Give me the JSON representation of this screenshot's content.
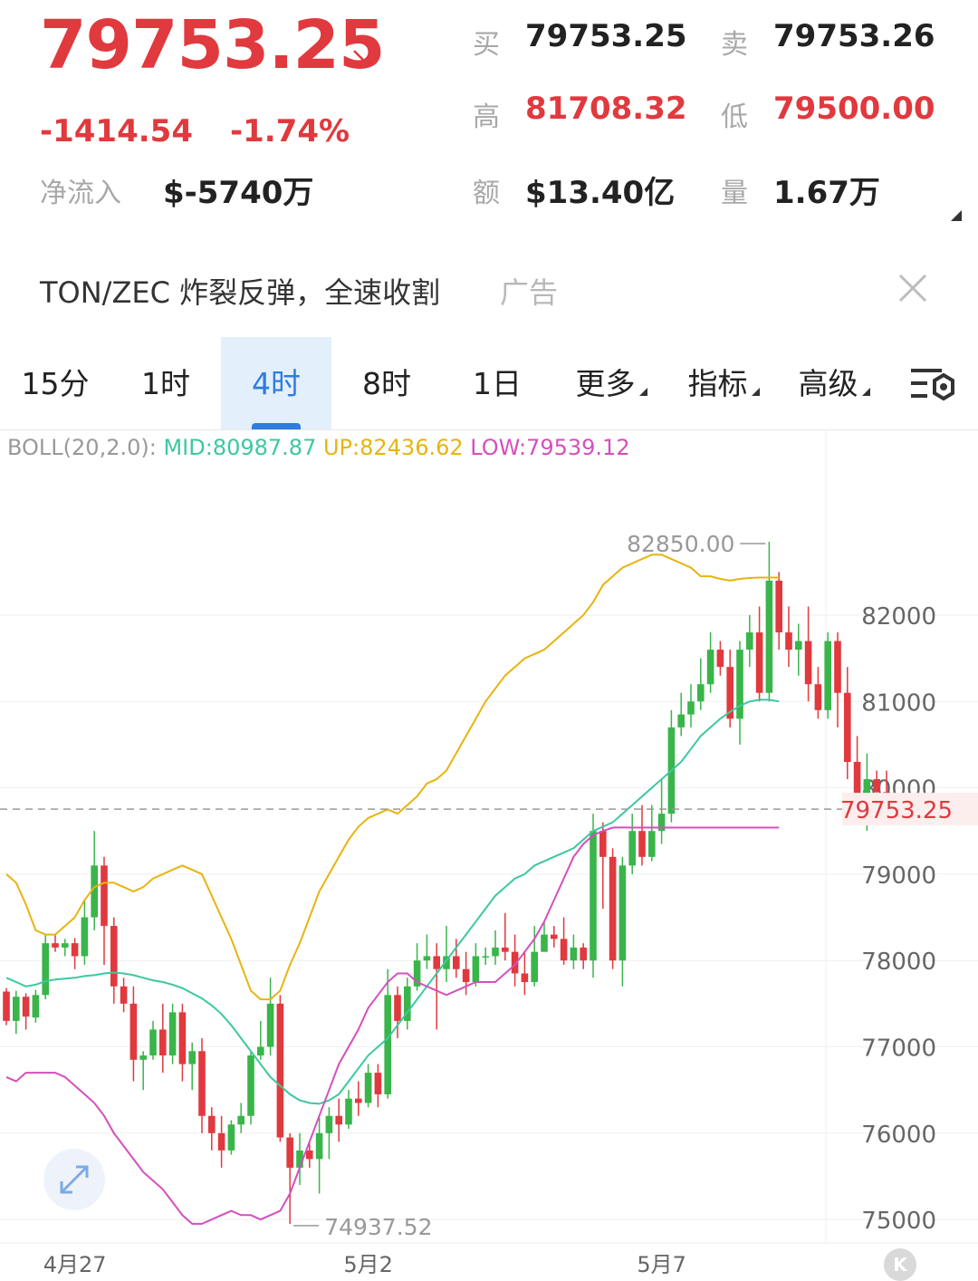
{
  "quote": {
    "last_price": "79753.25",
    "change": "-1414.54",
    "change_pct": "-1.74%",
    "net_inflow_label": "净流入",
    "net_inflow_value": "$-5740万",
    "bid_label": "买",
    "bid_value": "79753.25",
    "ask_label": "卖",
    "ask_value": "79753.26",
    "high_label": "高",
    "high_value": "81708.32",
    "low_label": "低",
    "low_value": "79500.00",
    "amount_label": "额",
    "amount_value": "$13.40亿",
    "volume_label": "量",
    "volume_value": "1.67万"
  },
  "ad": {
    "text": "TON/ZEC 炸裂反弹，全速收割",
    "tag": "广告"
  },
  "tabs": [
    {
      "label": "15分",
      "active": false
    },
    {
      "label": "1时",
      "active": false
    },
    {
      "label": "4时",
      "active": true
    },
    {
      "label": "8时",
      "active": false
    },
    {
      "label": "1日",
      "active": false
    },
    {
      "label": "更多",
      "active": false,
      "dropdown": true
    },
    {
      "label": "指标",
      "active": false,
      "dropdown": true
    },
    {
      "label": "高级",
      "active": false,
      "dropdown": true
    }
  ],
  "indicator": {
    "name": "BOLL(20,2.0):",
    "mid": "MID:80987.87",
    "up": "UP:82436.62",
    "low": "LOW:79539.12"
  },
  "colors": {
    "up": "#39b54a",
    "down": "#e0393e",
    "mid": "#3cc8a0",
    "upper": "#e8b40f",
    "lower": "#d54fbe",
    "accent": "#2f7ce0"
  },
  "k_button": "K",
  "chart_data": {
    "type": "candlestick",
    "y_ticks": [
      "82000",
      "81000",
      "80000",
      "79000",
      "78000",
      "77000",
      "76000",
      "75000"
    ],
    "x_labels": [
      {
        "label": "4月27",
        "index": 7
      },
      {
        "label": "5月2",
        "index": 37
      },
      {
        "label": "5月7",
        "index": 67
      }
    ],
    "ylim": [
      74800,
      83800
    ],
    "last_price_label": "79753.25",
    "max_label": "82850.00",
    "min_label": "74937.52",
    "candles": [
      [
        77640,
        77300,
        77680,
        77250
      ],
      [
        77300,
        77580,
        77650,
        77150
      ],
      [
        77580,
        77350,
        77620,
        77200
      ],
      [
        77340,
        77600,
        77660,
        77280
      ],
      [
        77600,
        78200,
        78300,
        77550
      ],
      [
        78200,
        78150,
        78300,
        78100
      ],
      [
        78150,
        78200,
        78250,
        78050
      ],
      [
        78200,
        78050,
        78260,
        77900
      ],
      [
        78050,
        78500,
        78700,
        77950
      ],
      [
        78500,
        79100,
        79500,
        78350
      ],
      [
        79100,
        78400,
        79200,
        77950
      ],
      [
        78400,
        77700,
        78500,
        77500
      ],
      [
        77700,
        77500,
        77800,
        77400
      ],
      [
        77500,
        76850,
        77700,
        76600
      ],
      [
        76850,
        76900,
        76950,
        76500
      ],
      [
        76900,
        77200,
        77300,
        76850
      ],
      [
        77200,
        76900,
        77500,
        76700
      ],
      [
        76900,
        77400,
        77500,
        76800
      ],
      [
        77400,
        76800,
        77500,
        76600
      ],
      [
        76800,
        76950,
        77050,
        76500
      ],
      [
        76950,
        76200,
        77100,
        76000
      ],
      [
        76200,
        76000,
        76300,
        75800
      ],
      [
        76000,
        75800,
        76200,
        75600
      ],
      [
        75800,
        76100,
        76150,
        75750
      ],
      [
        76100,
        76200,
        76350,
        76000
      ],
      [
        76200,
        76900,
        76950,
        76100
      ],
      [
        76900,
        77000,
        77300,
        76850
      ],
      [
        77000,
        77500,
        77800,
        76900
      ],
      [
        77500,
        75950,
        77600,
        75900
      ],
      [
        75950,
        75600,
        76000,
        74950
      ],
      [
        75600,
        75800,
        76000,
        75400
      ],
      [
        75800,
        75700,
        75900,
        75600
      ],
      [
        75700,
        76000,
        76200,
        75300
      ],
      [
        76000,
        76200,
        76300,
        75700
      ],
      [
        76200,
        76100,
        76400,
        75900
      ],
      [
        76100,
        76400,
        76500,
        76050
      ],
      [
        76400,
        76350,
        76600,
        76200
      ],
      [
        76350,
        76700,
        76800,
        76300
      ],
      [
        76700,
        76450,
        76800,
        76300
      ],
      [
        76450,
        77600,
        77900,
        76400
      ],
      [
        77600,
        77300,
        77700,
        77100
      ],
      [
        77300,
        77700,
        77800,
        77200
      ],
      [
        77700,
        78000,
        78200,
        77650
      ],
      [
        78000,
        78050,
        78300,
        77900
      ],
      [
        78050,
        77900,
        78200,
        77200
      ],
      [
        77900,
        78050,
        78400,
        77750
      ],
      [
        78050,
        77900,
        78250,
        77800
      ],
      [
        77900,
        77750,
        78100,
        77600
      ],
      [
        77750,
        78050,
        78200,
        77700
      ],
      [
        78050,
        78050,
        78150,
        77950
      ],
      [
        78050,
        78150,
        78350,
        77950
      ],
      [
        78150,
        78100,
        78550,
        78000
      ],
      [
        78100,
        77850,
        78300,
        77700
      ],
      [
        77850,
        77750,
        78100,
        77600
      ],
      [
        77750,
        78100,
        78400,
        77700
      ],
      [
        78100,
        78300,
        78450,
        78100
      ],
      [
        78300,
        78250,
        78400,
        78150
      ],
      [
        78250,
        78000,
        78500,
        77950
      ],
      [
        78000,
        78150,
        78300,
        77900
      ],
      [
        78150,
        78000,
        78200,
        77900
      ],
      [
        78000,
        79500,
        79700,
        77800
      ],
      [
        79500,
        79200,
        79600,
        78600
      ],
      [
        79200,
        78000,
        79300,
        77900
      ],
      [
        78000,
        79100,
        79200,
        77700
      ],
      [
        79100,
        79500,
        79700,
        79000
      ],
      [
        79500,
        79200,
        79800,
        79100
      ],
      [
        79200,
        79500,
        79800,
        79150
      ],
      [
        79500,
        79700,
        80100,
        79350
      ],
      [
        79700,
        80700,
        80900,
        79600
      ],
      [
        80700,
        80850,
        81100,
        80600
      ],
      [
        80850,
        81000,
        81200,
        80700
      ],
      [
        81000,
        81200,
        81500,
        80900
      ],
      [
        81200,
        81600,
        81800,
        81100
      ],
      [
        81600,
        81400,
        81700,
        81300
      ],
      [
        81400,
        80800,
        81600,
        80700
      ],
      [
        80800,
        81600,
        81700,
        80500
      ],
      [
        81600,
        81800,
        82000,
        81400
      ],
      [
        81800,
        81100,
        82100,
        81000
      ],
      [
        81100,
        82400,
        82850,
        81000
      ],
      [
        82400,
        81800,
        82500,
        81600
      ],
      [
        81800,
        81600,
        82100,
        81400
      ],
      [
        81600,
        81700,
        81900,
        81300
      ],
      [
        81700,
        81200,
        82100,
        81000
      ],
      [
        81200,
        80900,
        81400,
        80800
      ],
      [
        80900,
        81700,
        81800,
        80800
      ],
      [
        81700,
        81100,
        81800,
        80700
      ],
      [
        81100,
        80300,
        81400,
        80100
      ],
      [
        80300,
        79800,
        80600,
        79700
      ],
      [
        79800,
        80100,
        80400,
        79500
      ],
      [
        80100,
        79950,
        80200,
        79800
      ],
      [
        79950,
        79753,
        80200,
        79600
      ]
    ],
    "mid_series": [
      77800,
      77750,
      77700,
      77720,
      77760,
      77780,
      77790,
      77800,
      77820,
      77830,
      77850,
      77860,
      77850,
      77830,
      77800,
      77770,
      77750,
      77720,
      77680,
      77620,
      77560,
      77480,
      77380,
      77250,
      77100,
      76950,
      76800,
      76650,
      76550,
      76450,
      76380,
      76350,
      76340,
      76380,
      76450,
      76600,
      76750,
      76900,
      77000,
      77100,
      77250,
      77400,
      77550,
      77700,
      77850,
      78000,
      78150,
      78300,
      78450,
      78600,
      78750,
      78850,
      78950,
      79000,
      79100,
      79150,
      79200,
      79250,
      79300,
      79400,
      79500,
      79550,
      79600,
      79700,
      79800,
      79900,
      80000,
      80100,
      80200,
      80300,
      80450,
      80600,
      80700,
      80800,
      80880,
      80950,
      81000,
      81020,
      81020,
      81000
    ],
    "upper_series": [
      79000,
      78900,
      78650,
      78350,
      78300,
      78300,
      78400,
      78500,
      78700,
      78850,
      78900,
      78900,
      78850,
      78800,
      78850,
      78950,
      79000,
      79050,
      79100,
      79050,
      79000,
      78750,
      78500,
      78250,
      77950,
      77650,
      77550,
      77550,
      77650,
      77950,
      78200,
      78500,
      78800,
      79000,
      79200,
      79400,
      79550,
      79650,
      79700,
      79750,
      79700,
      79800,
      79900,
      80050,
      80100,
      80200,
      80400,
      80600,
      80800,
      81000,
      81150,
      81300,
      81400,
      81500,
      81550,
      81600,
      81700,
      81800,
      81900,
      82000,
      82150,
      82350,
      82450,
      82550,
      82600,
      82650,
      82700,
      82700,
      82650,
      82600,
      82550,
      82450,
      82450,
      82420,
      82400,
      82420,
      82430,
      82436,
      82436,
      82436
    ],
    "lower_series": [
      76650,
      76600,
      76700,
      76700,
      76700,
      76700,
      76650,
      76550,
      76450,
      76350,
      76200,
      76000,
      75850,
      75700,
      75550,
      75450,
      75350,
      75200,
      75050,
      74950,
      74950,
      75000,
      75050,
      75100,
      75050,
      75050,
      75000,
      75050,
      75100,
      75300,
      75600,
      75900,
      76200,
      76500,
      76800,
      77000,
      77200,
      77450,
      77600,
      77750,
      77850,
      77850,
      77750,
      77700,
      77650,
      77600,
      77650,
      77700,
      77750,
      77750,
      77750,
      77850,
      77950,
      78100,
      78250,
      78450,
      78700,
      78950,
      79200,
      79350,
      79450,
      79500,
      79539,
      79540,
      79539,
      79539,
      79539,
      79539,
      79539,
      79539,
      79539,
      79539,
      79539,
      79539,
      79539,
      79539,
      79539,
      79539,
      79539,
      79539
    ]
  }
}
